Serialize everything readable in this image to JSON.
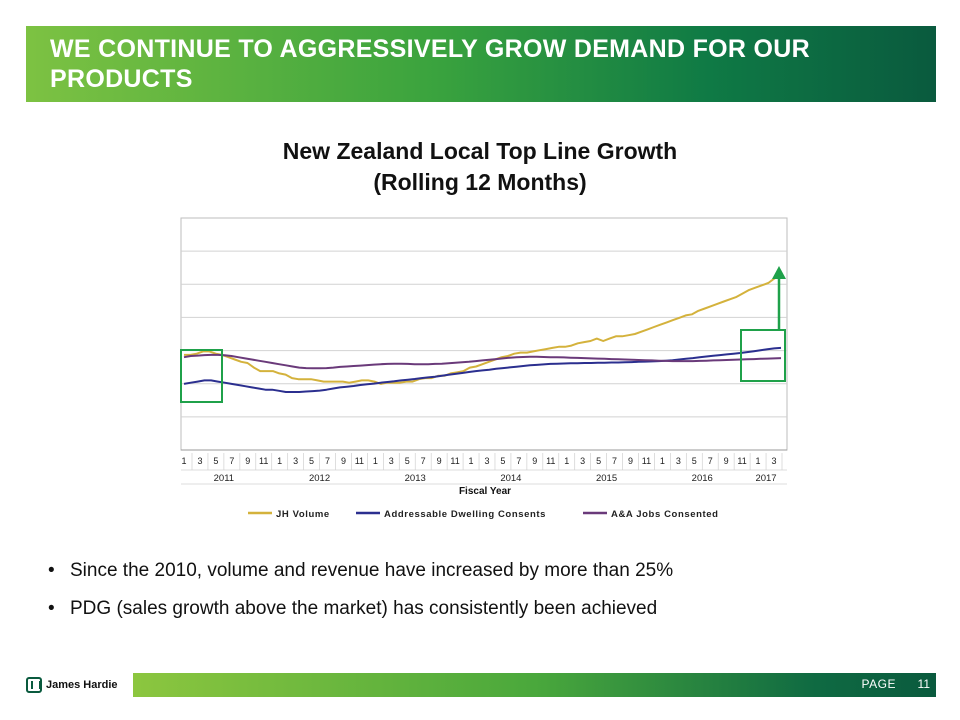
{
  "header": {
    "title": "WE CONTINUE TO AGGRESSIVELY GROW DEMAND FOR OUR PRODUCTS"
  },
  "chart_data": {
    "type": "line",
    "title": "New Zealand Local Top Line Growth",
    "subtitle": "(Rolling 12 Months)",
    "xlabel": "Fiscal Year",
    "ylabel": "",
    "month_ticks": [
      "1",
      "3",
      "5",
      "7",
      "9",
      "11",
      "1",
      "3",
      "5",
      "7",
      "9",
      "11",
      "1",
      "3",
      "5",
      "7",
      "9",
      "11",
      "1",
      "3",
      "5",
      "7",
      "9",
      "11",
      "1",
      "3",
      "5",
      "7",
      "9",
      "11",
      "1",
      "3",
      "5",
      "7",
      "9",
      "11",
      "1",
      "3"
    ],
    "year_labels": [
      "2011",
      "2012",
      "2013",
      "2014",
      "2015",
      "2016",
      "2017"
    ],
    "ylim": [
      0,
      100
    ],
    "series": [
      {
        "name": "JH Volume",
        "color": "#d4b23c",
        "values": [
          41,
          41,
          41.5,
          42.5,
          42.5,
          41.5,
          41,
          40,
          39,
          38,
          37.5,
          35.5,
          34,
          34,
          34,
          33,
          32.5,
          31,
          30.5,
          30.5,
          30.5,
          30,
          29.5,
          29.5,
          29.5,
          29.5,
          29,
          29.5,
          30,
          30,
          29.5,
          28.5,
          29,
          29,
          29,
          29.5,
          29.5,
          30.5,
          31,
          31,
          32,
          32,
          33,
          33.5,
          34,
          35.5,
          36,
          37,
          38,
          39,
          40,
          40.5,
          41.5,
          42,
          42,
          42.5,
          43,
          43.5,
          44,
          44.5,
          44.5,
          45,
          46,
          46.5,
          47,
          48,
          47,
          48,
          49,
          49,
          49.5,
          50,
          51,
          52,
          53,
          54,
          55,
          56,
          57,
          58,
          58.5,
          60,
          61,
          62,
          63,
          64,
          65,
          66,
          67.5,
          69,
          70,
          71,
          72,
          74,
          75
        ]
      },
      {
        "name": "Addressable Dwelling Consents",
        "color": "#2b2f8f",
        "values": [
          28.5,
          29,
          29.5,
          30,
          30,
          29.5,
          29,
          28.5,
          28,
          27.5,
          27,
          26.5,
          26,
          26,
          25.5,
          25,
          25,
          25,
          25.2,
          25.4,
          25.6,
          26,
          26.5,
          27,
          27.3,
          27.6,
          28,
          28.3,
          28.6,
          29,
          29.3,
          29.6,
          30,
          30.3,
          30.6,
          31,
          31.3,
          31.6,
          32,
          32.4,
          32.8,
          33.2,
          33.6,
          34,
          34.3,
          34.6,
          35,
          35.3,
          35.6,
          35.9,
          36.2,
          36.5,
          36.7,
          36.9,
          37.1,
          37.2,
          37.3,
          37.4,
          37.4,
          37.5,
          37.5,
          37.6,
          37.6,
          37.7,
          37.7,
          37.8,
          37.9,
          38,
          38.1,
          38.2,
          38.3,
          38.5,
          38.7,
          39,
          39.3,
          39.6,
          40,
          40.3,
          40.6,
          40.9,
          41.2,
          41.5,
          41.8,
          42.2,
          42.6,
          43,
          43.4,
          43.8,
          44
        ]
      },
      {
        "name": "A&A Jobs Consented",
        "color": "#6a3a7a",
        "values": [
          40,
          40.5,
          40.7,
          40.9,
          41,
          41,
          40.8,
          40.5,
          40,
          39.5,
          39,
          38.5,
          38,
          37.5,
          37,
          36.5,
          36,
          35.5,
          35.3,
          35.2,
          35.2,
          35.3,
          35.5,
          35.8,
          36,
          36.2,
          36.4,
          36.6,
          36.8,
          37,
          37.1,
          37.2,
          37.2,
          37.1,
          37,
          37,
          37,
          37.1,
          37.2,
          37.4,
          37.6,
          37.8,
          38,
          38.3,
          38.6,
          38.9,
          39.2,
          39.5,
          39.8,
          40,
          40.1,
          40.2,
          40.2,
          40.1,
          40,
          40,
          39.9,
          39.8,
          39.7,
          39.6,
          39.5,
          39.4,
          39.3,
          39.2,
          39.1,
          39,
          38.9,
          38.8,
          38.7,
          38.6,
          38.5,
          38.4,
          38.3,
          38.3,
          38.3,
          38.3,
          38.4,
          38.5,
          38.6,
          38.7,
          38.8,
          38.9,
          39,
          39.1,
          39.2,
          39.3,
          39.4,
          39.5,
          39.6
        ]
      }
    ],
    "highlight_boxes": [
      "start of period",
      "end of period"
    ],
    "growth_arrow": true
  },
  "bullets": [
    {
      "dot": "•",
      "text": "Since the 2010, volume and revenue have increased by more than 25%"
    },
    {
      "dot": "•",
      "text": "PDG (sales growth above the market) has consistently been achieved"
    }
  ],
  "footer": {
    "logo_text": "James Hardie",
    "page_label": "PAGE",
    "page_number": "11"
  }
}
